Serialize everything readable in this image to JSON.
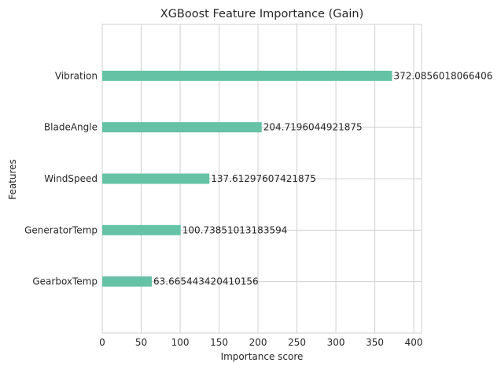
{
  "chart_data": {
    "type": "bar",
    "orientation": "horizontal",
    "title": "XGBoost Feature Importance (Gain)",
    "xlabel": "Importance score",
    "ylabel": "Features",
    "categories": [
      "Vibration",
      "BladeAngle",
      "WindSpeed",
      "GeneratorTemp",
      "GearboxTemp"
    ],
    "values": [
      372.0856018066406,
      204.7196044921875,
      137.61297607421875,
      100.73851013183594,
      63.665443420410156
    ],
    "value_labels": [
      "372.0856018066406",
      "204.7196044921875",
      "137.61297607421875",
      "100.73851013183594",
      "63.665443420410156"
    ],
    "xlim": [
      0,
      410
    ],
    "xticks": [
      0,
      50,
      100,
      150,
      200,
      250,
      300,
      350,
      400
    ],
    "grid": true,
    "bar_color": "#66c2a5"
  }
}
